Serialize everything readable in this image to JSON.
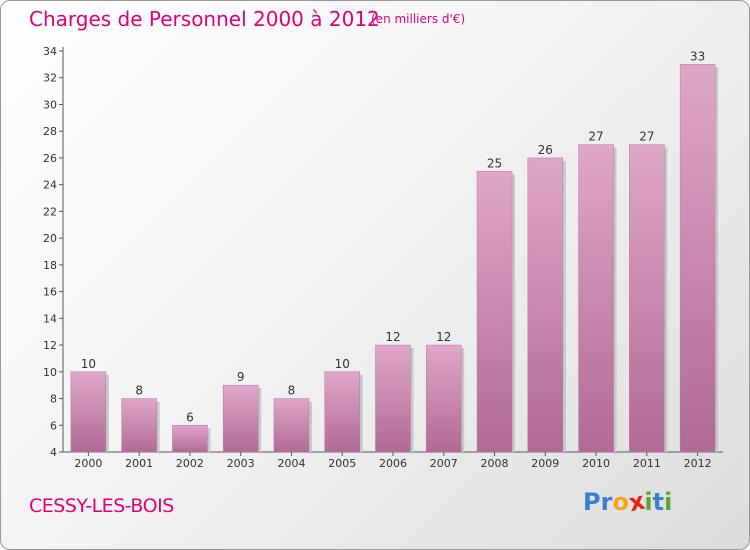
{
  "title": "Charges de Personnel 2000 à 2012",
  "subtitle": "(en milliers d'€)",
  "location": "CESSY-LES-BOIS",
  "logo": {
    "text": "Proxiti",
    "letters": [
      {
        "ch": "P",
        "color": "#3a7fd5"
      },
      {
        "ch": "r",
        "color": "#3a7fd5"
      },
      {
        "ch": "o",
        "color": "#f4a31b"
      },
      {
        "ch": "x",
        "color": "#e2231a"
      },
      {
        "ch": "i",
        "color": "#5aa832"
      },
      {
        "ch": "t",
        "color": "#3a7fd5"
      },
      {
        "ch": "i",
        "color": "#5aa832"
      }
    ]
  },
  "colors": {
    "accent": "#e0007a",
    "bar_top": "#e0a7c9",
    "bar_bottom": "#b06a96"
  },
  "chart_data": {
    "type": "bar",
    "categories": [
      "2000",
      "2001",
      "2002",
      "2003",
      "2004",
      "2005",
      "2006",
      "2007",
      "2008",
      "2009",
      "2010",
      "2011",
      "2012"
    ],
    "values": [
      10,
      8,
      6,
      9,
      8,
      10,
      12,
      12,
      25,
      26,
      27,
      27,
      33
    ],
    "ylim": [
      4,
      34
    ],
    "yticks": [
      4,
      6,
      8,
      10,
      12,
      14,
      16,
      18,
      20,
      22,
      24,
      26,
      28,
      30,
      32,
      34
    ],
    "grid": false
  }
}
